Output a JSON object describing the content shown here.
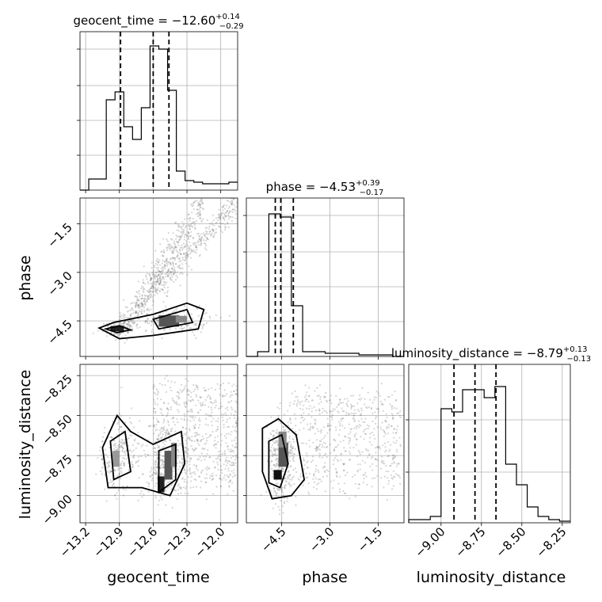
{
  "chart_data": {
    "type": "corner",
    "parameters": [
      {
        "name": "geocent_time",
        "median_text": "−12.60",
        "plus_text": "+0.14",
        "minus_text": "−0.29",
        "quantiles": [
          -12.89,
          -12.6,
          -12.46
        ],
        "axis_range": [
          -13.25,
          -11.85
        ],
        "tick_values": [
          -13.2,
          -12.9,
          -12.6,
          -12.3,
          -12.0
        ],
        "tick_labels": [
          "−13.2",
          "−12.9",
          "−12.6",
          "−12.3",
          "−12.0"
        ],
        "hist_bins": [
          0,
          0.07,
          0.07,
          0.57,
          0.62,
          0.4,
          0.32,
          0.52,
          0.91,
          0.89,
          0.63,
          0.12,
          0.06,
          0.05,
          0.04,
          0.04,
          0.04,
          0.05
        ],
        "hist_y_ticks": [
          0.22,
          0.44,
          0.66,
          0.89
        ]
      },
      {
        "name": "phase",
        "median_text": "−4.53",
        "plus_text": "+0.39",
        "minus_text": "−0.17",
        "quantiles": [
          -4.7,
          -4.53,
          -4.14
        ],
        "axis_range": [
          -5.6,
          -0.7
        ],
        "tick_values": [
          -4.5,
          -3.0,
          -1.5
        ],
        "tick_labels": [
          "−4.5",
          "−3.0",
          "−1.5"
        ],
        "hist_bins": [
          0,
          0.03,
          0.9,
          0.88,
          0.32,
          0.03,
          0.03,
          0.02,
          0.02,
          0.02,
          0.01,
          0.01,
          0.01,
          0.0
        ],
        "hist_y_ticks": [
          0.22,
          0.44,
          0.66,
          0.89
        ]
      },
      {
        "name": "luminosity_distance",
        "median_text": "−8.79",
        "plus_text": "+0.13",
        "minus_text": "−0.13",
        "quantiles": [
          -8.92,
          -8.79,
          -8.66
        ],
        "axis_range": [
          -9.2,
          -8.2
        ],
        "tick_values": [
          -9.0,
          -8.75,
          -8.5,
          -8.25
        ],
        "tick_labels": [
          "−9.00",
          "−8.75",
          "−8.50",
          "−8.25"
        ],
        "hist_bins": [
          0.02,
          0.02,
          0.04,
          0.72,
          0.7,
          0.84,
          0.84,
          0.79,
          0.86,
          0.37,
          0.24,
          0.1,
          0.04,
          0.02,
          0.01
        ],
        "hist_y_ticks": [
          0.32,
          0.65
        ]
      }
    ],
    "y_tick_labels_rows": {
      "phase": [
        "−1.5",
        "−3.0",
        "−4.5"
      ],
      "luminosity_distance": [
        "−8.25",
        "−8.50",
        "−8.75",
        "−9.00"
      ]
    },
    "y_axis_ranges_rows": {
      "phase": [
        -5.6,
        -0.7
      ],
      "luminosity_distance": [
        -9.17,
        -8.18
      ]
    },
    "grid": true
  }
}
